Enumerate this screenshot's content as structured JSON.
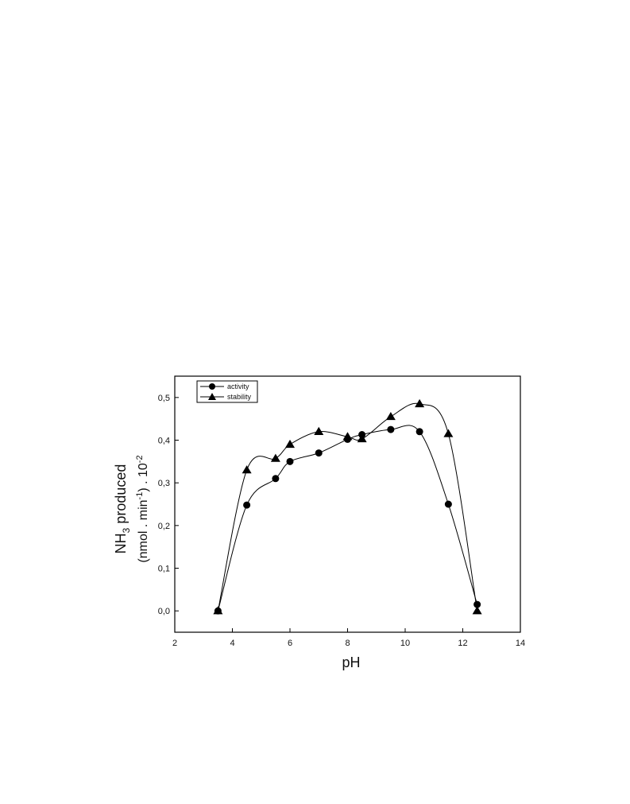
{
  "chart_data": {
    "type": "line",
    "xlabel": "pH",
    "ylabel_line1_prefix": "NH",
    "ylabel_line1_sub": "3",
    "ylabel_line1_suffix": " produced",
    "ylabel_line2_prefix": "(nmol . min",
    "ylabel_line2_sup": "-1",
    "ylabel_line2_mid": ") . 10",
    "ylabel_line2_sup2": "-2",
    "xlim": [
      2,
      14
    ],
    "ylim": [
      -0.05,
      0.55
    ],
    "x_ticks": [
      {
        "value": 2,
        "label": "2"
      },
      {
        "value": 4,
        "label": "4"
      },
      {
        "value": 6,
        "label": "6"
      },
      {
        "value": 8,
        "label": "8"
      },
      {
        "value": 10,
        "label": "10"
      },
      {
        "value": 12,
        "label": "12"
      },
      {
        "value": 14,
        "label": "14"
      }
    ],
    "y_ticks": [
      {
        "value": 0.0,
        "label": "0,0"
      },
      {
        "value": 0.1,
        "label": "0,1"
      },
      {
        "value": 0.2,
        "label": "0,2"
      },
      {
        "value": 0.3,
        "label": "0,3"
      },
      {
        "value": 0.4,
        "label": "0,4"
      },
      {
        "value": 0.5,
        "label": "0,5"
      }
    ],
    "grid": false,
    "legend_position": "top-left",
    "series": [
      {
        "name": "activity",
        "marker": "circle",
        "color": "#000000",
        "x": [
          3.5,
          4.5,
          5.5,
          6.0,
          7.0,
          8.0,
          8.5,
          9.5,
          10.5,
          11.5,
          12.5
        ],
        "y": [
          0.0,
          0.248,
          0.31,
          0.35,
          0.37,
          0.402,
          0.413,
          0.425,
          0.42,
          0.25,
          0.015
        ]
      },
      {
        "name": "stability",
        "marker": "triangle",
        "color": "#000000",
        "x": [
          3.5,
          4.5,
          5.5,
          6.0,
          7.0,
          8.0,
          8.5,
          9.5,
          10.5,
          11.5,
          12.5
        ],
        "y": [
          0.0,
          0.33,
          0.357,
          0.39,
          0.42,
          0.408,
          0.403,
          0.455,
          0.485,
          0.415,
          0.0
        ]
      }
    ]
  }
}
